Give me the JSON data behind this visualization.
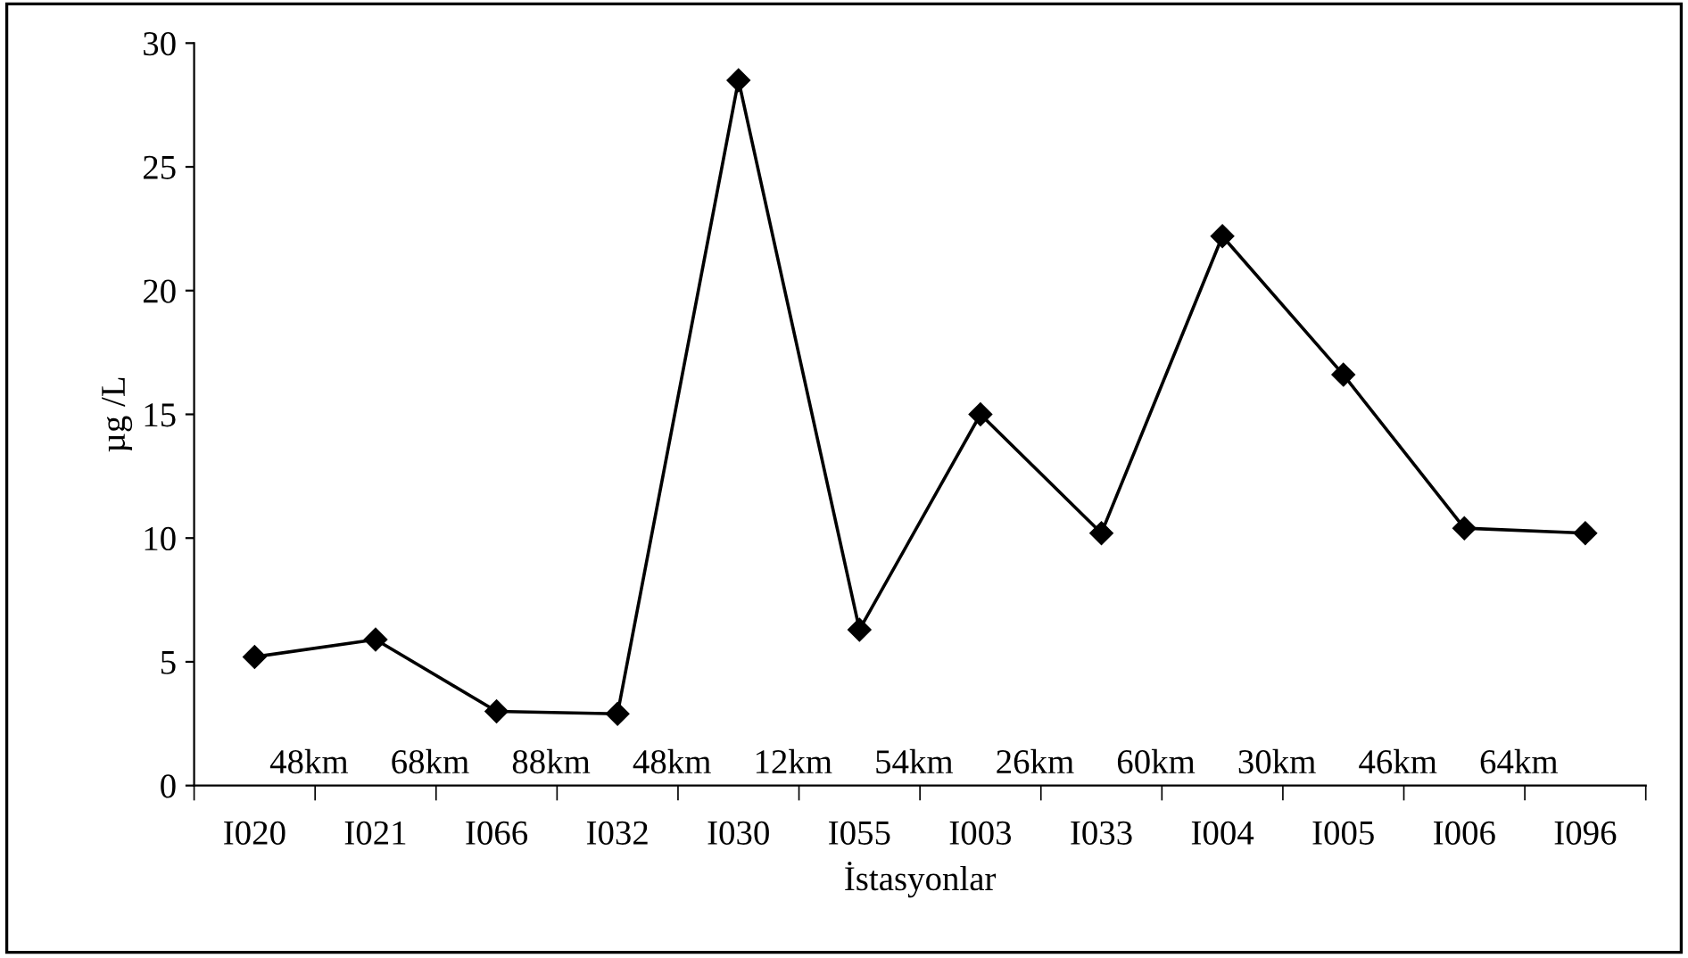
{
  "chart_data": {
    "type": "line",
    "xlabel": "İstasyonlar",
    "ylabel": "µg /L",
    "categories": [
      "I020",
      "I021",
      "I066",
      "I032",
      "I030",
      "I055",
      "I003",
      "I033",
      "I004",
      "I005",
      "I006",
      "I096"
    ],
    "series": [
      {
        "color": "#000000",
        "values": [
          5.2,
          5.9,
          3.0,
          2.9,
          28.5,
          6.3,
          15.0,
          10.2,
          22.2,
          16.6,
          10.4,
          10.2
        ]
      }
    ],
    "ylim": [
      0,
      30
    ],
    "yticks": [
      0,
      5,
      10,
      15,
      20,
      25,
      30
    ],
    "grid": false,
    "legend": false,
    "marker": "diamond",
    "line_style": "solid",
    "annotations": [
      "48km",
      "68km",
      "88km",
      "48km",
      "12km",
      "54km",
      "26km",
      "60km",
      "30km",
      "46km",
      "64km"
    ]
  }
}
